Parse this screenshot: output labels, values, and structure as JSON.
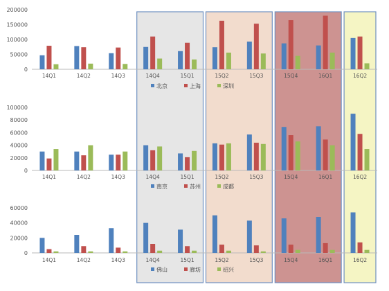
{
  "colors": {
    "series1": "#4f81bd",
    "series2": "#c0504d",
    "series3": "#9bbb59",
    "region_gray": "#e6e6e6",
    "region_peach": "#f2dccd",
    "region_red": "#c98a88",
    "region_yellow": "#f5f5c4",
    "region_border": "#6d8fc0"
  },
  "regions": [
    {
      "from": "14Q4",
      "to": "15Q1",
      "color": "gray"
    },
    {
      "from": "15Q2",
      "to": "15Q3",
      "color": "peach"
    },
    {
      "from": "15Q4",
      "to": "16Q1",
      "color": "red"
    },
    {
      "from": "16Q2",
      "to": "16Q2",
      "color": "yellow"
    }
  ],
  "chart_data": [
    {
      "type": "bar",
      "categories": [
        "14Q1",
        "14Q2",
        "14Q3",
        "14Q4",
        "15Q1",
        "15Q2",
        "15Q3",
        "15Q4",
        "16Q1",
        "16Q2"
      ],
      "ylim": [
        0,
        200000
      ],
      "yticks": [
        0,
        50000,
        100000,
        150000,
        200000
      ],
      "tick_labels": [
        "0",
        "50000",
        "100000",
        "150000",
        "200000"
      ],
      "legend_position": "bottom",
      "series": [
        {
          "name": "北京",
          "values": [
            47000,
            78000,
            54000,
            75000,
            61000,
            74000,
            93000,
            87000,
            80000,
            105000
          ]
        },
        {
          "name": "上海",
          "values": [
            79000,
            74000,
            73000,
            110000,
            89000,
            163000,
            153000,
            165000,
            180000,
            110000
          ]
        },
        {
          "name": "深圳",
          "values": [
            17000,
            19000,
            18000,
            36000,
            33000,
            56000,
            53000,
            45000,
            56000,
            20000
          ]
        }
      ]
    },
    {
      "type": "bar",
      "categories": [
        "14Q1",
        "14Q2",
        "14Q3",
        "14Q4",
        "15Q1",
        "15Q2",
        "15Q3",
        "15Q4",
        "16Q1",
        "16Q2"
      ],
      "ylim": [
        0,
        100000
      ],
      "yticks": [
        0,
        20000,
        40000,
        60000,
        80000,
        100000
      ],
      "tick_labels": [
        "0",
        "20000",
        "40000",
        "60000",
        "80000",
        "100000"
      ],
      "legend_position": "bottom",
      "series": [
        {
          "name": "南京",
          "values": [
            30000,
            30000,
            25000,
            40000,
            27000,
            43000,
            57000,
            69000,
            70000,
            90000
          ]
        },
        {
          "name": "苏州",
          "values": [
            19000,
            24000,
            25000,
            32000,
            21000,
            41000,
            44000,
            56000,
            49000,
            58000
          ]
        },
        {
          "name": "成都",
          "values": [
            34000,
            40000,
            30000,
            38000,
            31000,
            43000,
            42000,
            46000,
            40000,
            34000
          ]
        }
      ]
    },
    {
      "type": "bar",
      "categories": [
        "14Q1",
        "14Q2",
        "14Q3",
        "14Q4",
        "15Q1",
        "15Q2",
        "15Q3",
        "15Q4",
        "16Q1",
        "16Q2"
      ],
      "ylim": [
        0,
        60000
      ],
      "yticks": [
        0,
        20000,
        40000,
        60000
      ],
      "tick_labels": [
        "0",
        "20000",
        "40000",
        "60000"
      ],
      "legend_position": "bottom",
      "series": [
        {
          "name": "佛山",
          "values": [
            20000,
            24000,
            33000,
            40000,
            31000,
            50000,
            43000,
            46000,
            48000,
            54000
          ]
        },
        {
          "name": "廊坊",
          "values": [
            5000,
            9000,
            7000,
            12000,
            9000,
            11000,
            10000,
            11000,
            13000,
            14000
          ]
        },
        {
          "name": "绍兴",
          "values": [
            2000,
            2000,
            2000,
            3000,
            3000,
            3000,
            2000,
            4000,
            4000,
            4000
          ]
        }
      ]
    }
  ]
}
